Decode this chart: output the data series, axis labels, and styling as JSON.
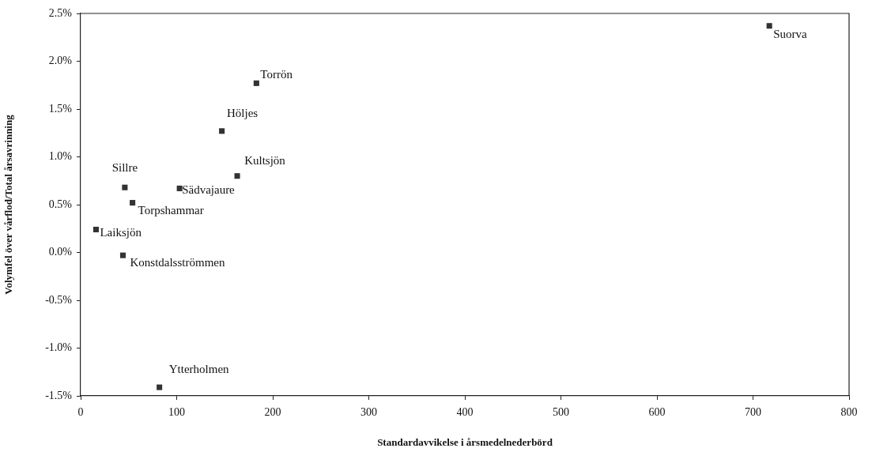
{
  "chart_data": {
    "type": "scatter",
    "xlabel": "Standardavvikelse i årsmedelnederbörd",
    "ylabel": "Volymfel över vårflod/Total årsavrinning",
    "x": [
      717,
      183,
      147,
      163,
      46,
      103,
      54,
      16,
      44,
      82
    ],
    "values": [
      2.37,
      1.77,
      1.27,
      0.8,
      0.68,
      0.67,
      0.52,
      0.24,
      -0.03,
      -1.41
    ],
    "color": "#333333",
    "marker": "square",
    "xlim": [
      0,
      800
    ],
    "xticks": [
      0,
      100,
      200,
      300,
      400,
      500,
      600,
      700,
      800
    ],
    "ylim": [
      -1.5,
      2.5
    ],
    "yticks": [
      {
        "value": -1.5,
        "label": "-1.5%"
      },
      {
        "value": -1.0,
        "label": "-1.0%"
      },
      {
        "value": -0.5,
        "label": "-0.5%"
      },
      {
        "value": 0,
        "label": "0.0%"
      },
      {
        "value": 0.5,
        "label": "0.5%"
      },
      {
        "value": 1.0,
        "label": "1.0%"
      },
      {
        "value": 1.5,
        "label": "1.5%"
      },
      {
        "value": 2.0,
        "label": "2.0%"
      },
      {
        "value": 2.5,
        "label": "2.5%"
      }
    ],
    "annotations": [
      {
        "text": "Suorva",
        "x": 717,
        "y": 2.37
      },
      {
        "text": "Torrön",
        "x": 183,
        "y": 1.77
      },
      {
        "text": "Höljes",
        "x": 147,
        "y": 1.27
      },
      {
        "text": "Kultsjön",
        "x": 163,
        "y": 0.8
      },
      {
        "text": "Sillre",
        "x": 46,
        "y": 0.68
      },
      {
        "text": "Sädvajaure",
        "x": 103,
        "y": 0.67
      },
      {
        "text": "Torpshammar",
        "x": 54,
        "y": 0.52
      },
      {
        "text": "Laiksjön",
        "x": 16,
        "y": 0.24
      },
      {
        "text": "Konstdalsströmmen",
        "x": 44,
        "y": -0.03
      },
      {
        "text": "Ytterholmen",
        "x": 82,
        "y": -1.41
      }
    ]
  }
}
